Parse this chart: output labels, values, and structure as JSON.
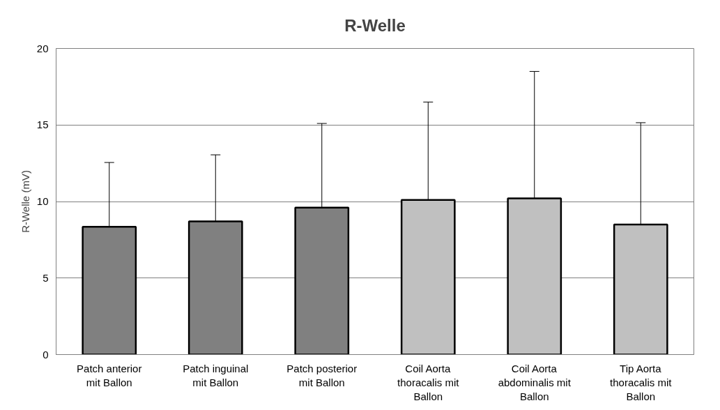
{
  "chart_data": {
    "type": "bar",
    "title": "R-Welle",
    "ylabel": "R-Welle (mV)",
    "categories": [
      "Patch anterior mit Ballon",
      "Patch inguinal mit Ballon",
      "Patch posterior mit Ballon",
      "Coil Aorta thoracalis mit Ballon",
      "Coil Aorta abdominalis mit Ballon",
      "Tip Aorta thoracalis mit Ballon"
    ],
    "values": [
      8.35,
      8.7,
      9.6,
      10.1,
      10.2,
      8.5
    ],
    "colors": [
      "#808080",
      "#808080",
      "#808080",
      "#c0c0c0",
      "#c0c0c0",
      "#c0c0c0"
    ],
    "errors": [
      [
        8.35,
        12.55
      ],
      [
        8.7,
        13.05
      ],
      [
        9.6,
        15.1
      ],
      [
        10.1,
        16.5
      ],
      [
        10.2,
        18.5
      ],
      [
        8.5,
        15.15
      ]
    ],
    "ylim": [
      0,
      20
    ],
    "yticks": [
      0,
      5,
      10,
      15,
      20
    ],
    "grid": "y"
  }
}
